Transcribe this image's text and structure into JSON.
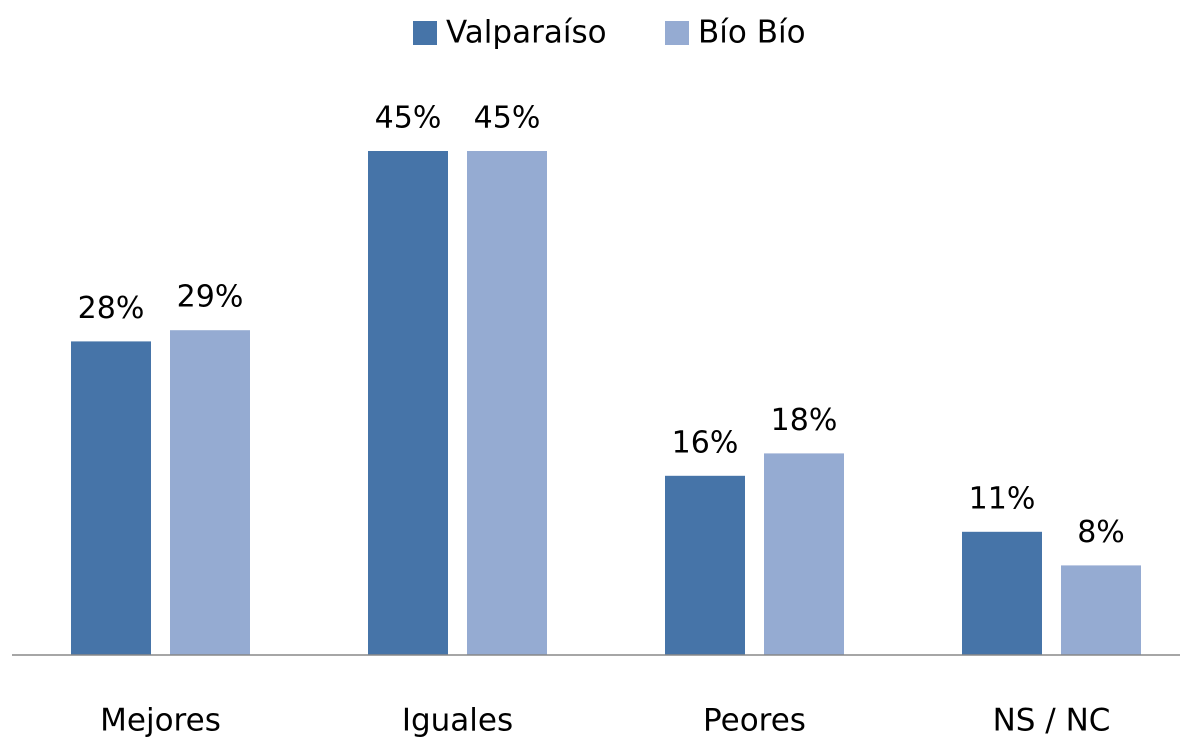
{
  "chart_data": {
    "type": "bar",
    "categories": [
      "Mejores",
      "Iguales",
      "Peores",
      "NS / NC"
    ],
    "series": [
      {
        "name": "Valparaíso",
        "color": "#4674a8",
        "values": [
          28,
          45,
          16,
          11
        ],
        "value_labels": [
          "28%",
          "45%",
          "16%",
          "11%"
        ]
      },
      {
        "name": "Bío Bío",
        "color": "#95abd2",
        "values": [
          29,
          45,
          18,
          8
        ],
        "value_labels": [
          "29%",
          "45%",
          "18%",
          "8%"
        ]
      }
    ],
    "legend": "top"
  }
}
